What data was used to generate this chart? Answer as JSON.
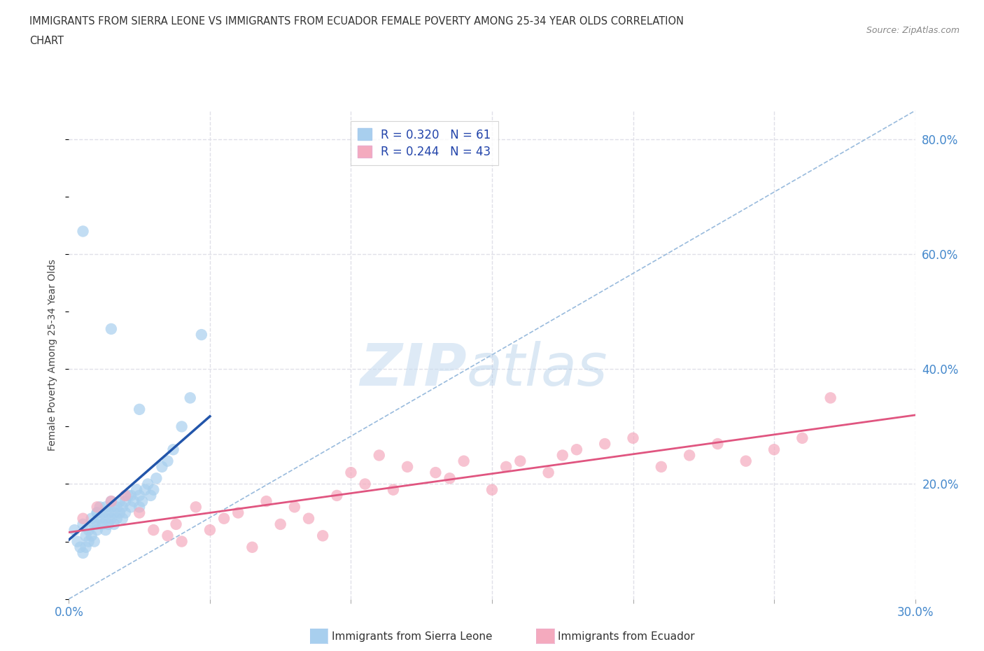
{
  "title_line1": "IMMIGRANTS FROM SIERRA LEONE VS IMMIGRANTS FROM ECUADOR FEMALE POVERTY AMONG 25-34 YEAR OLDS CORRELATION",
  "title_line2": "CHART",
  "source": "Source: ZipAtlas.com",
  "ylabel": "Female Poverty Among 25-34 Year Olds",
  "xlim": [
    0.0,
    0.3
  ],
  "ylim": [
    0.0,
    0.85
  ],
  "xticks": [
    0.0,
    0.05,
    0.1,
    0.15,
    0.2,
    0.25,
    0.3
  ],
  "xticklabels": [
    "0.0%",
    "",
    "",
    "",
    "",
    "",
    "30.0%"
  ],
  "yticks": [
    0.0,
    0.2,
    0.4,
    0.6,
    0.8
  ],
  "yticklabels": [
    "",
    "20.0%",
    "40.0%",
    "60.0%",
    "80.0%"
  ],
  "r_sierra": 0.32,
  "n_sierra": 61,
  "r_ecuador": 0.244,
  "n_ecuador": 43,
  "color_sierra": "#A8CFEE",
  "color_ecuador": "#F4AABE",
  "line_color_sierra": "#2255AA",
  "line_color_ecuador": "#E05580",
  "diagonal_color": "#99BBDD",
  "watermark_zip": "ZIP",
  "watermark_atlas": "atlas",
  "background_color": "#FFFFFF",
  "grid_color": "#E0E0E8",
  "sierra_leone_x": [
    0.002,
    0.003,
    0.004,
    0.005,
    0.005,
    0.006,
    0.006,
    0.007,
    0.007,
    0.008,
    0.008,
    0.009,
    0.009,
    0.01,
    0.01,
    0.01,
    0.01,
    0.011,
    0.011,
    0.012,
    0.012,
    0.013,
    0.013,
    0.013,
    0.014,
    0.014,
    0.015,
    0.015,
    0.015,
    0.016,
    0.016,
    0.017,
    0.017,
    0.018,
    0.018,
    0.019,
    0.019,
    0.02,
    0.02,
    0.021,
    0.022,
    0.022,
    0.023,
    0.024,
    0.025,
    0.025,
    0.026,
    0.027,
    0.028,
    0.029,
    0.03,
    0.031,
    0.033,
    0.035,
    0.037,
    0.04,
    0.043,
    0.047,
    0.005,
    0.015,
    0.025
  ],
  "sierra_leone_y": [
    0.12,
    0.1,
    0.09,
    0.13,
    0.08,
    0.11,
    0.09,
    0.1,
    0.12,
    0.11,
    0.14,
    0.1,
    0.13,
    0.15,
    0.12,
    0.13,
    0.15,
    0.14,
    0.16,
    0.13,
    0.15,
    0.14,
    0.16,
    0.12,
    0.15,
    0.13,
    0.16,
    0.14,
    0.17,
    0.15,
    0.13,
    0.16,
    0.14,
    0.15,
    0.17,
    0.14,
    0.16,
    0.17,
    0.15,
    0.18,
    0.16,
    0.18,
    0.17,
    0.19,
    0.18,
    0.16,
    0.17,
    0.19,
    0.2,
    0.18,
    0.19,
    0.21,
    0.23,
    0.24,
    0.26,
    0.3,
    0.35,
    0.46,
    0.64,
    0.47,
    0.33
  ],
  "ecuador_x": [
    0.005,
    0.01,
    0.015,
    0.02,
    0.025,
    0.03,
    0.035,
    0.038,
    0.04,
    0.045,
    0.05,
    0.055,
    0.06,
    0.065,
    0.07,
    0.075,
    0.08,
    0.085,
    0.09,
    0.095,
    0.1,
    0.105,
    0.11,
    0.115,
    0.12,
    0.13,
    0.135,
    0.14,
    0.15,
    0.155,
    0.16,
    0.17,
    0.175,
    0.18,
    0.19,
    0.2,
    0.21,
    0.22,
    0.23,
    0.24,
    0.25,
    0.26,
    0.27
  ],
  "ecuador_y": [
    0.14,
    0.16,
    0.17,
    0.18,
    0.15,
    0.12,
    0.11,
    0.13,
    0.1,
    0.16,
    0.12,
    0.14,
    0.15,
    0.09,
    0.17,
    0.13,
    0.16,
    0.14,
    0.11,
    0.18,
    0.22,
    0.2,
    0.25,
    0.19,
    0.23,
    0.22,
    0.21,
    0.24,
    0.19,
    0.23,
    0.24,
    0.22,
    0.25,
    0.26,
    0.27,
    0.28,
    0.23,
    0.25,
    0.27,
    0.24,
    0.26,
    0.28,
    0.35
  ]
}
